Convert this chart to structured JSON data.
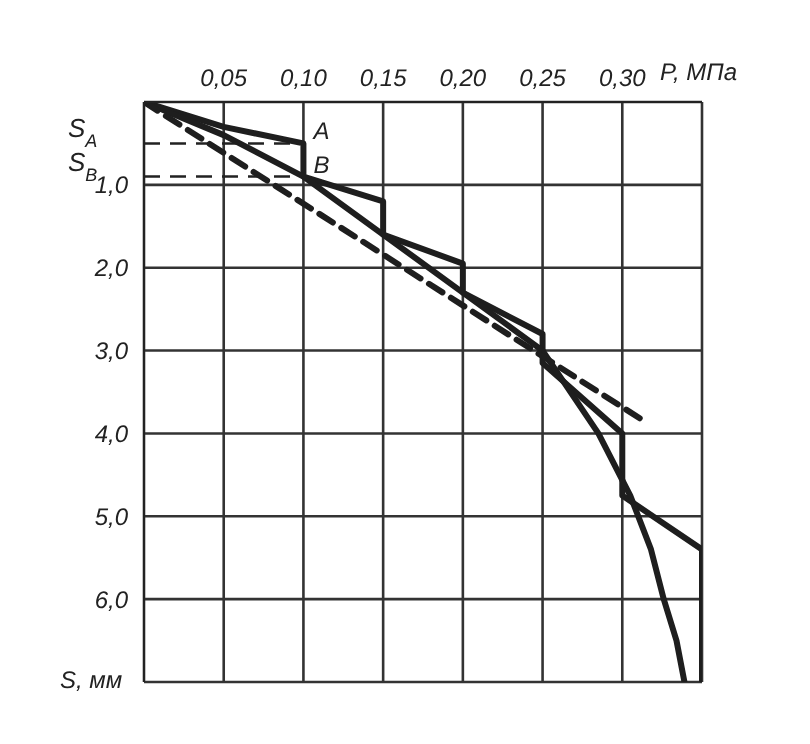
{
  "chart_data": {
    "type": "line",
    "xlabel": "P, МПа",
    "ylabel": "S, мм",
    "xlim": [
      0,
      0.35
    ],
    "ylim": [
      7,
      0
    ],
    "xticks": [
      {
        "value": 0,
        "label": null
      },
      {
        "value": 0.05,
        "label": "0,05"
      },
      {
        "value": 0.1,
        "label": "0,10"
      },
      {
        "value": 0.15,
        "label": "0,15"
      },
      {
        "value": 0.2,
        "label": "0,20"
      },
      {
        "value": 0.25,
        "label": "0,25"
      },
      {
        "value": 0.3,
        "label": "0,30"
      },
      {
        "value": 0.35,
        "label": null
      }
    ],
    "yticks": [
      {
        "value": 0,
        "label": null
      },
      {
        "value": 1,
        "label": "1,0"
      },
      {
        "value": 2,
        "label": "2,0"
      },
      {
        "value": 3,
        "label": "3,0"
      },
      {
        "value": 4,
        "label": "4,0"
      },
      {
        "value": 5,
        "label": "5,0"
      },
      {
        "value": 6,
        "label": "6,0"
      },
      {
        "value": 7,
        "label": null
      }
    ],
    "grid": true,
    "marker": "none",
    "series": [
      {
        "color": "#1e1e1e",
        "line_style": "solid",
        "x": [
          0,
          0.05,
          0.1,
          0.1,
          0.15,
          0.15,
          0.2,
          0.2,
          0.25,
          0.25,
          0.3,
          0.3,
          0.35,
          0.35
        ],
        "values": [
          0,
          0.3,
          0.5,
          0.9,
          1.2,
          1.6,
          1.95,
          2.3,
          2.8,
          3.15,
          4.0,
          4.75,
          5.4,
          7.0
        ]
      },
      {
        "color": "#1e1e1e",
        "line_style": "solid",
        "x": [
          0,
          0.05,
          0.1,
          0.15,
          0.2,
          0.25,
          0.285,
          0.305,
          0.318,
          0.326,
          0.334,
          0.339
        ],
        "values": [
          0,
          0.4,
          0.9,
          1.6,
          2.3,
          3.0,
          4.0,
          4.75,
          5.4,
          6.0,
          6.5,
          7.0
        ]
      },
      {
        "color": "#1e1e1e",
        "line_style": "dashed",
        "x": [
          0,
          0.312
        ],
        "values": [
          0,
          3.83
        ]
      }
    ],
    "ref_lines": [
      {
        "axis": "y",
        "value": 0.5,
        "label": "S$_{A}$",
        "line_style": "dashed"
      },
      {
        "axis": "y",
        "value": 0.9,
        "label": "S$_{B}$",
        "line_style": "dashed"
      }
    ],
    "annotations": [
      {
        "text": "A",
        "x": 0.1,
        "y": 0.5
      },
      {
        "text": "B",
        "x": 0.1,
        "y": 0.9
      }
    ]
  }
}
